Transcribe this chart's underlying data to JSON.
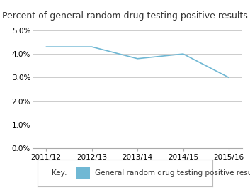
{
  "title": "Percent of general random drug testing positive results",
  "x_labels": [
    "2011/12",
    "2012/13",
    "2013/14",
    "2014/15",
    "2015/16"
  ],
  "y_values": [
    4.3,
    4.3,
    3.8,
    4.0,
    3.0
  ],
  "line_color": "#70b8d4",
  "ylim": [
    0.0,
    5.0
  ],
  "yticks": [
    0.0,
    1.0,
    2.0,
    3.0,
    4.0,
    5.0
  ],
  "legend_label": "General random drug testing positive results",
  "legend_key_color": "#70b8d4",
  "background_color": "#ffffff",
  "grid_color": "#cccccc",
  "title_fontsize": 9.0,
  "tick_fontsize": 7.5,
  "legend_fontsize": 7.5
}
